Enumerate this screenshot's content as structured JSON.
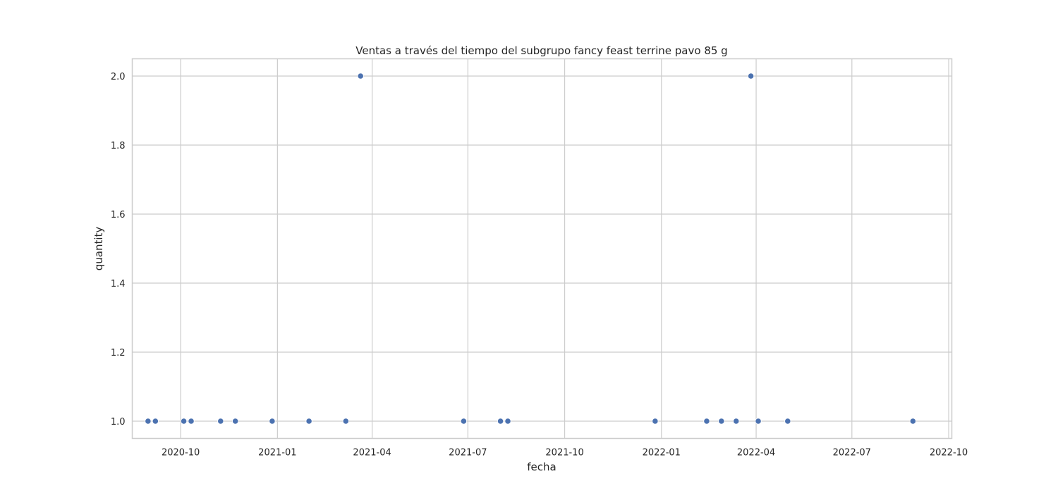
{
  "chart_data": {
    "type": "scatter",
    "title": "Ventas a través del tiempo del subgrupo fancy feast terrine pavo 85 g",
    "xlabel": "fecha",
    "ylabel": "quantity",
    "x_tick_labels": [
      "2020-10",
      "2021-01",
      "2021-04",
      "2021-07",
      "2021-10",
      "2022-01",
      "2022-04",
      "2022-07",
      "2022-10"
    ],
    "x_ticks": [
      "2020-10-01",
      "2021-01-01",
      "2021-04-01",
      "2021-07-01",
      "2021-10-01",
      "2022-01-01",
      "2022-04-01",
      "2022-07-01",
      "2022-10-01"
    ],
    "y_ticks": [
      1.0,
      1.2,
      1.4,
      1.6,
      1.8,
      2.0
    ],
    "y_tick_labels": [
      "1.0",
      "1.2",
      "1.4",
      "1.6",
      "1.8",
      "2.0"
    ],
    "xlim": [
      "2020-08-16",
      "2022-10-04"
    ],
    "ylim": [
      0.95,
      2.05
    ],
    "grid": true,
    "marker_color": "#4c72b0",
    "points": [
      {
        "x": "2020-08-31",
        "y": 1
      },
      {
        "x": "2020-09-07",
        "y": 1
      },
      {
        "x": "2020-10-04",
        "y": 1
      },
      {
        "x": "2020-10-11",
        "y": 1
      },
      {
        "x": "2020-11-08",
        "y": 1
      },
      {
        "x": "2020-11-22",
        "y": 1
      },
      {
        "x": "2020-12-27",
        "y": 1
      },
      {
        "x": "2021-01-31",
        "y": 1
      },
      {
        "x": "2021-03-07",
        "y": 1
      },
      {
        "x": "2021-03-21",
        "y": 2
      },
      {
        "x": "2021-06-27",
        "y": 1
      },
      {
        "x": "2021-08-01",
        "y": 1
      },
      {
        "x": "2021-08-08",
        "y": 1
      },
      {
        "x": "2021-12-26",
        "y": 1
      },
      {
        "x": "2022-02-13",
        "y": 1
      },
      {
        "x": "2022-02-27",
        "y": 1
      },
      {
        "x": "2022-03-13",
        "y": 1
      },
      {
        "x": "2022-03-27",
        "y": 2
      },
      {
        "x": "2022-04-03",
        "y": 1
      },
      {
        "x": "2022-05-01",
        "y": 1
      },
      {
        "x": "2022-08-28",
        "y": 1
      }
    ]
  }
}
